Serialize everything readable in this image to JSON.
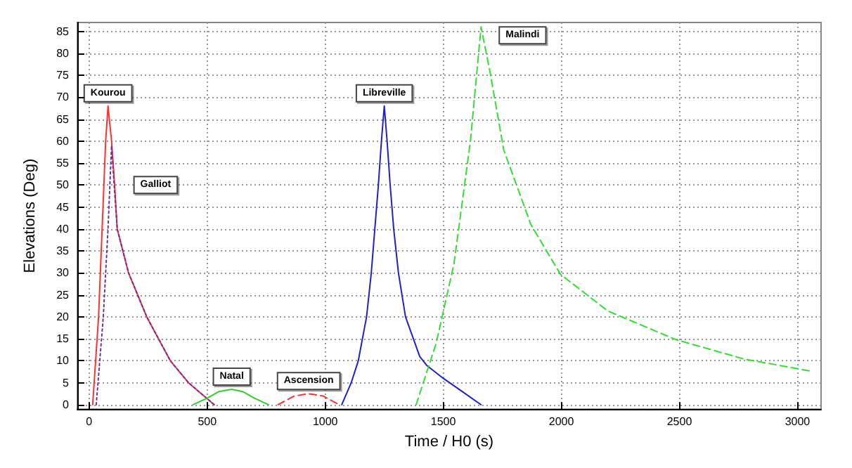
{
  "chart_data": {
    "type": "line",
    "xlabel": "Time / H0 (s)",
    "ylabel": "Elevations (Deg)",
    "xlim": [
      -50,
      3100
    ],
    "xticks": [
      0,
      500,
      1000,
      1500,
      2000,
      2500,
      3000
    ],
    "ylim": [
      -1,
      87
    ],
    "yticks": [
      0,
      5,
      10,
      15,
      20,
      25,
      30,
      35,
      40,
      45,
      50,
      55,
      60,
      65,
      70,
      75,
      80,
      85
    ],
    "grid": true,
    "marker": "none",
    "series": [
      {
        "color": "#ff3030",
        "line_style": "solid",
        "x": [
          15,
          40,
          55,
          70,
          80,
          95,
          108,
          119,
          167,
          244,
          344,
          421,
          530
        ],
        "values": [
          0,
          20,
          40,
          60,
          68,
          60,
          50,
          40,
          30,
          20,
          10,
          5,
          0
        ]
      },
      {
        "color": "#7030a0",
        "line_style": "dotted",
        "x": [
          30,
          60,
          80,
          95,
          106,
          119,
          167,
          244,
          344,
          421,
          530
        ],
        "values": [
          0,
          20,
          40,
          59,
          50,
          40,
          30,
          20,
          10,
          5,
          0
        ]
      },
      {
        "color": "#33cc33",
        "line_style": "solid",
        "x": [
          440,
          500,
          550,
          604,
          650,
          700,
          760
        ],
        "values": [
          0,
          1.5,
          3,
          3.5,
          3,
          1.5,
          0
        ]
      },
      {
        "color": "#ff3030",
        "line_style": "dashed",
        "x": [
          800,
          870,
          930,
          990,
          1060
        ],
        "values": [
          0,
          2,
          2.5,
          2,
          0
        ]
      },
      {
        "color": "#2020cc",
        "line_style": "solid",
        "x": [
          1070,
          1110,
          1140,
          1175,
          1195,
          1210,
          1225,
          1238,
          1250,
          1262,
          1275,
          1290,
          1310,
          1340,
          1400,
          1429,
          1500,
          1580,
          1660
        ],
        "values": [
          0,
          5,
          10,
          20,
          30,
          40,
          50,
          60,
          68,
          60,
          50,
          40,
          30,
          20,
          11,
          9,
          6,
          3,
          0
        ]
      },
      {
        "color": "#33dd33",
        "line_style": "dashed",
        "x": [
          1385,
          1470,
          1545,
          1615,
          1660,
          1698,
          1756,
          1871,
          1996,
          2198,
          2486,
          2774,
          3062
        ],
        "values": [
          0,
          14,
          32,
          60,
          86,
          75.7,
          58,
          41,
          29.7,
          21.3,
          14.8,
          10.4,
          7.6
        ]
      }
    ],
    "annotations": [
      {
        "text": "Kourou",
        "x": 80,
        "y": 68
      },
      {
        "text": "Galliot",
        "x": 106,
        "y": 50
      },
      {
        "text": "Natal",
        "x": 604,
        "y": 3.5
      },
      {
        "text": "Ascension",
        "x": 930,
        "y": 2.5
      },
      {
        "text": "Libreville",
        "x": 1250,
        "y": 68
      },
      {
        "text": "Malindi",
        "x": 1660,
        "y": 86
      }
    ]
  }
}
